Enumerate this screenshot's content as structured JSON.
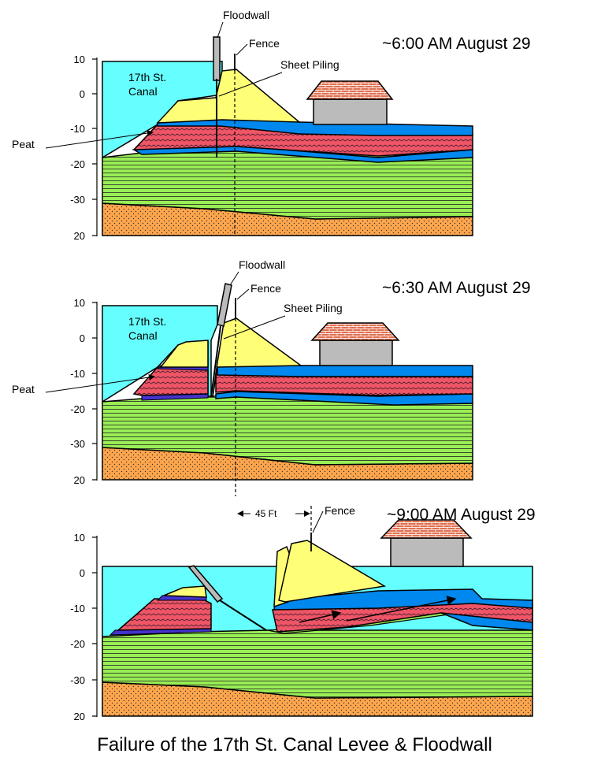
{
  "title": "Failure of the 17th St. Canal Levee & Floodwall",
  "panels": [
    {
      "time": "~6:00 AM August 29",
      "labels": {
        "floodwall": "Floodwall",
        "fence": "Fence",
        "sheet_piling": "Sheet Piling",
        "canal": [
          "17th St.",
          "Canal"
        ],
        "peat": "Peat"
      },
      "y_ticks": [
        "10",
        "0",
        "-10",
        "-20",
        "-30",
        "20"
      ]
    },
    {
      "time": "~6:30 AM August 29",
      "labels": {
        "floodwall": "Floodwall",
        "fence": "Fence",
        "sheet_piling": "Sheet Piling",
        "canal": [
          "17th St.",
          "Canal"
        ],
        "peat": "Peat"
      },
      "y_ticks": [
        "10",
        "0",
        "-10",
        "-20",
        "-30",
        "20"
      ]
    },
    {
      "time": "~9:00 AM August 29",
      "labels": {
        "fence": "Fence",
        "displacement": "45 Ft"
      },
      "y_ticks": [
        "10",
        "0",
        "-10",
        "-20",
        "-30",
        "20"
      ]
    }
  ],
  "colors": {
    "canal_water": "#66ffff",
    "levee_fill": "#ffff77",
    "peat_layer": "#ee5566",
    "blue_layer": "#0088ee",
    "clay_layer": "#99ee55",
    "sand_layer": "#ffa64d",
    "structures": "#bbbbbb"
  }
}
